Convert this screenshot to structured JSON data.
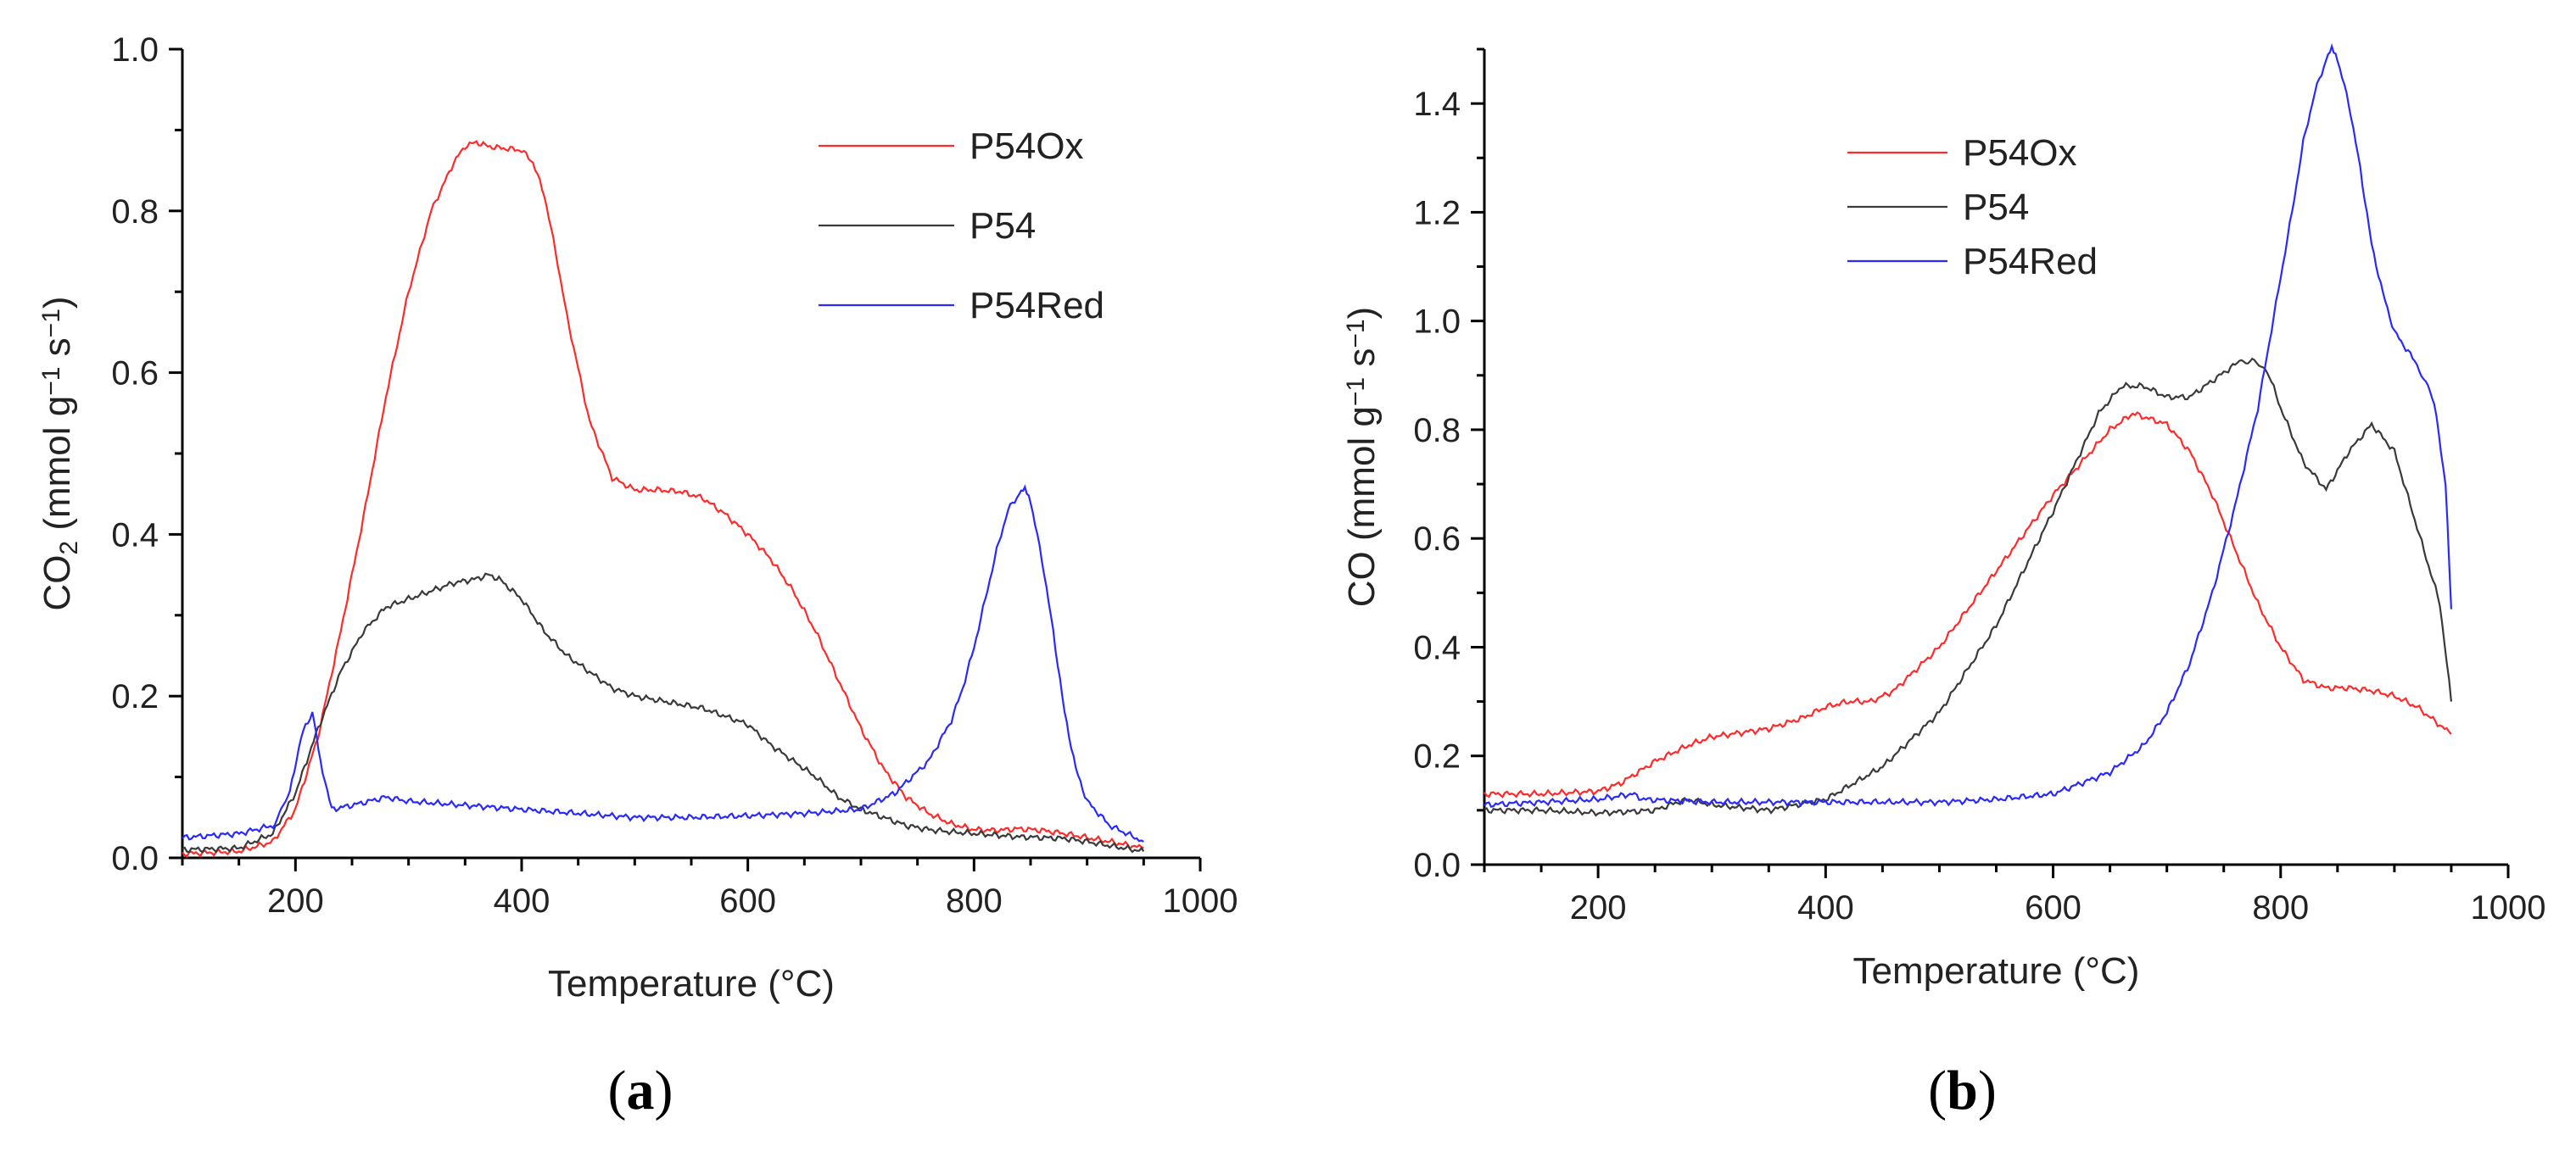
{
  "chart_data": [
    {
      "panel_label": "a",
      "type": "line",
      "xlabel": "Temperature (°C)",
      "ylabel": "CO2 (mmol g−1 s−1)",
      "ylabel_parts": [
        "CO",
        "2",
        " (mmol g",
        "−1",
        " s",
        "−1",
        ")"
      ],
      "xlim": [
        100,
        1000
      ],
      "ylim": [
        0,
        1.0
      ],
      "x_ticks": [
        200,
        400,
        600,
        800,
        1000
      ],
      "x_tick_labels": [
        "200",
        "400",
        "600",
        "800",
        "1000"
      ],
      "y_ticks": [
        0,
        0.2,
        0.4,
        0.6,
        0.8,
        1.0
      ],
      "y_tick_labels": [
        "0.0",
        "0.2",
        "0.4",
        "0.6",
        "0.8",
        "1.0"
      ],
      "legend": "top-right",
      "series": [
        {
          "name": "P54Ox",
          "color": "#ff2a2a",
          "x": [
            100,
            150,
            180,
            200,
            220,
            240,
            260,
            280,
            300,
            320,
            340,
            350,
            360,
            370,
            380,
            400,
            410,
            420,
            430,
            440,
            460,
            480,
            500,
            520,
            540,
            560,
            580,
            600,
            620,
            640,
            660,
            680,
            700,
            720,
            740,
            760,
            780,
            800,
            820,
            840,
            860,
            880,
            900,
            920,
            950
          ],
          "y": [
            0.005,
            0.008,
            0.02,
            0.06,
            0.15,
            0.28,
            0.42,
            0.57,
            0.7,
            0.8,
            0.86,
            0.88,
            0.885,
            0.88,
            0.878,
            0.875,
            0.86,
            0.82,
            0.75,
            0.67,
            0.54,
            0.47,
            0.455,
            0.455,
            0.453,
            0.445,
            0.425,
            0.4,
            0.37,
            0.33,
            0.28,
            0.22,
            0.16,
            0.11,
            0.075,
            0.055,
            0.042,
            0.035,
            0.034,
            0.036,
            0.034,
            0.03,
            0.025,
            0.02,
            0.012
          ]
        },
        {
          "name": "P54",
          "color": "#3a3a3a",
          "x": [
            100,
            150,
            180,
            200,
            220,
            240,
            260,
            280,
            300,
            320,
            340,
            360,
            370,
            380,
            400,
            420,
            440,
            460,
            480,
            500,
            520,
            540,
            560,
            580,
            600,
            620,
            640,
            660,
            680,
            700,
            720,
            740,
            760,
            780,
            800,
            820,
            840,
            860,
            880,
            900,
            920,
            950
          ],
          "y": [
            0.01,
            0.012,
            0.03,
            0.08,
            0.16,
            0.23,
            0.28,
            0.31,
            0.32,
            0.33,
            0.34,
            0.345,
            0.35,
            0.345,
            0.32,
            0.28,
            0.25,
            0.23,
            0.21,
            0.2,
            0.195,
            0.19,
            0.185,
            0.175,
            0.165,
            0.14,
            0.12,
            0.1,
            0.075,
            0.06,
            0.05,
            0.04,
            0.035,
            0.032,
            0.03,
            0.028,
            0.026,
            0.025,
            0.024,
            0.02,
            0.015,
            0.008
          ]
        },
        {
          "name": "P54Red",
          "color": "#2a2aff",
          "x": [
            100,
            150,
            180,
            195,
            205,
            215,
            222,
            232,
            250,
            280,
            300,
            350,
            400,
            450,
            500,
            550,
            600,
            650,
            700,
            730,
            760,
            780,
            790,
            800,
            810,
            820,
            830,
            840,
            845,
            850,
            860,
            870,
            880,
            890,
            900,
            920,
            950
          ],
          "y": [
            0.025,
            0.03,
            0.04,
            0.08,
            0.15,
            0.18,
            0.12,
            0.06,
            0.065,
            0.075,
            0.07,
            0.065,
            0.06,
            0.055,
            0.05,
            0.05,
            0.052,
            0.055,
            0.06,
            0.08,
            0.12,
            0.17,
            0.21,
            0.26,
            0.32,
            0.38,
            0.43,
            0.45,
            0.455,
            0.44,
            0.37,
            0.28,
            0.18,
            0.11,
            0.07,
            0.04,
            0.02
          ]
        }
      ]
    },
    {
      "panel_label": "b",
      "type": "line",
      "xlabel": "Temperature (°C)",
      "ylabel": "CO (mmol g−1 s−1)",
      "ylabel_parts": [
        "CO (mmol g",
        "−1",
        " s",
        "−1",
        ")"
      ],
      "xlim": [
        100,
        1000
      ],
      "ylim": [
        0,
        1.5
      ],
      "x_ticks": [
        200,
        400,
        600,
        800,
        1000
      ],
      "x_tick_labels": [
        "200",
        "400",
        "600",
        "800",
        "1000"
      ],
      "y_ticks": [
        0,
        0.2,
        0.4,
        0.6,
        0.8,
        1.0,
        1.2,
        1.4
      ],
      "y_tick_labels": [
        "0.0",
        "0.2",
        "0.4",
        "0.6",
        "0.8",
        "1.0",
        "1.2",
        "1.4"
      ],
      "legend": "top-center",
      "series": [
        {
          "name": "P54Ox",
          "color": "#ff2a2a",
          "x": [
            100,
            150,
            200,
            220,
            250,
            280,
            300,
            350,
            380,
            400,
            420,
            440,
            460,
            500,
            550,
            600,
            650,
            670,
            700,
            720,
            740,
            760,
            780,
            800,
            820,
            840,
            860,
            880,
            900,
            920,
            950
          ],
          "y": [
            0.13,
            0.13,
            0.135,
            0.15,
            0.19,
            0.22,
            0.235,
            0.25,
            0.27,
            0.29,
            0.3,
            0.3,
            0.32,
            0.4,
            0.54,
            0.68,
            0.8,
            0.83,
            0.81,
            0.76,
            0.68,
            0.58,
            0.48,
            0.4,
            0.34,
            0.325,
            0.325,
            0.32,
            0.31,
            0.29,
            0.24
          ]
        },
        {
          "name": "P54",
          "color": "#3a3a3a",
          "x": [
            100,
            150,
            200,
            250,
            270,
            280,
            300,
            350,
            400,
            450,
            500,
            550,
            600,
            640,
            660,
            680,
            700,
            720,
            740,
            760,
            775,
            790,
            800,
            820,
            840,
            860,
            880,
            900,
            920,
            940,
            950
          ],
          "y": [
            0.1,
            0.1,
            0.095,
            0.1,
            0.115,
            0.12,
            0.11,
            0.1,
            0.12,
            0.18,
            0.28,
            0.44,
            0.65,
            0.83,
            0.88,
            0.88,
            0.86,
            0.86,
            0.89,
            0.92,
            0.93,
            0.9,
            0.84,
            0.74,
            0.69,
            0.76,
            0.81,
            0.76,
            0.62,
            0.48,
            0.3
          ]
        },
        {
          "name": "P54Red",
          "color": "#2a2aff",
          "x": [
            100,
            150,
            200,
            230,
            240,
            300,
            350,
            400,
            450,
            500,
            550,
            600,
            650,
            680,
            700,
            720,
            740,
            760,
            780,
            800,
            810,
            820,
            830,
            840,
            845,
            850,
            860,
            870,
            880,
            890,
            900,
            920,
            935,
            945,
            950
          ],
          "y": [
            0.11,
            0.115,
            0.12,
            0.13,
            0.12,
            0.115,
            0.115,
            0.115,
            0.115,
            0.115,
            0.12,
            0.13,
            0.17,
            0.22,
            0.28,
            0.37,
            0.5,
            0.66,
            0.84,
            1.08,
            1.2,
            1.33,
            1.42,
            1.48,
            1.5,
            1.48,
            1.4,
            1.28,
            1.14,
            1.05,
            0.98,
            0.92,
            0.85,
            0.7,
            0.47
          ]
        }
      ]
    }
  ]
}
